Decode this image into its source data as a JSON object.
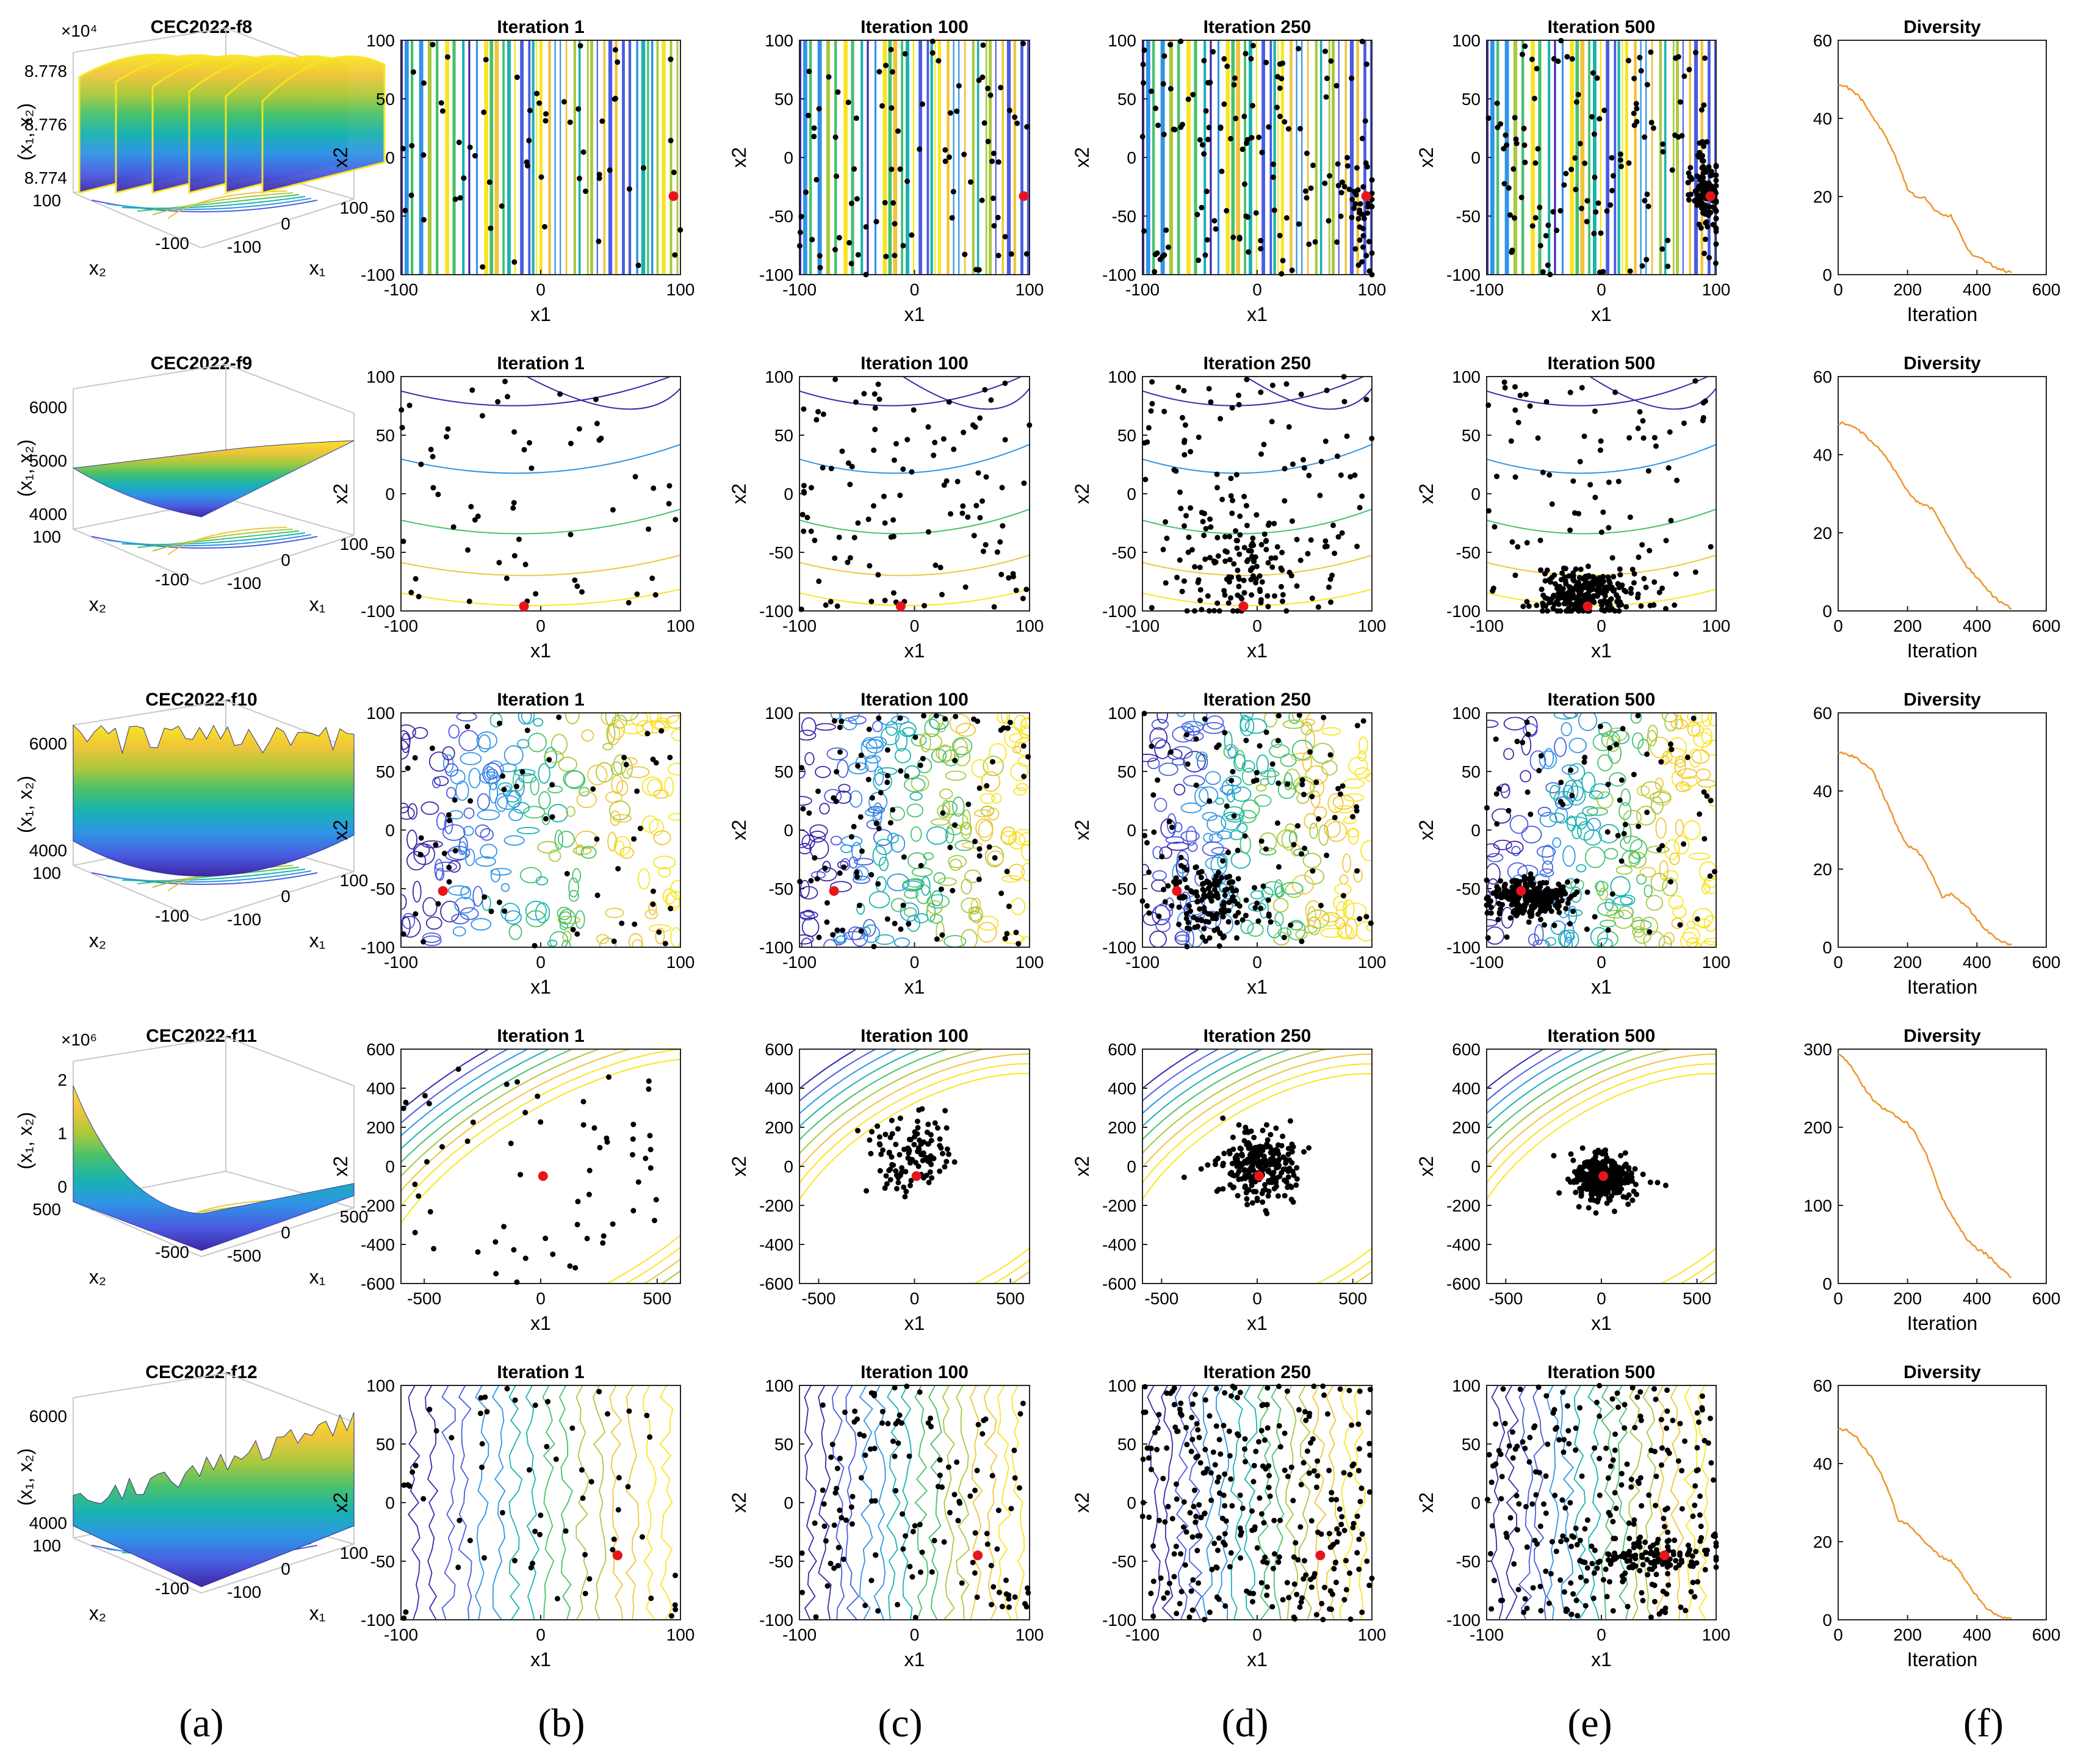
{
  "colors": {
    "particle": "#000000",
    "best": "#e8141b",
    "diversity_line": "#f0932b",
    "palette": [
      "#3e26a8",
      "#4a5ce0",
      "#2f95e6",
      "#19b3b0",
      "#47c16d",
      "#a9c93d",
      "#f0c53a",
      "#f9e520"
    ]
  },
  "column_labels": [
    "(a)",
    "(b)",
    "(c)",
    "(d)",
    "(e)",
    "(f)"
  ],
  "iteration_titles": [
    "Iteration 1",
    "Iteration 100",
    "Iteration 250",
    "Iteration 500"
  ],
  "diversity_title": "Diversity",
  "diversity_xlabel": "Iteration",
  "contour_xlabel": "x1",
  "contour_ylabel": "x2",
  "surface_xlabel": "x₁",
  "surface_ylabel": "x₂",
  "surface_zlabel": "(x₁, x₂)",
  "chart_data": [
    {
      "type": "surface3d",
      "title": "CEC2022-f8",
      "pattern": "stripes",
      "z_exponent": "×10⁴",
      "z_ticks": [
        "8.778",
        "8.776",
        "8.774"
      ],
      "x1_ticks": [
        "-100",
        "0",
        "100"
      ],
      "x2_ticks": [
        "100",
        "-100"
      ],
      "contour_style": "stripes",
      "xlim": [
        -100,
        100
      ],
      "ylim": [
        -100,
        100
      ],
      "xticks": [
        -100,
        0,
        100
      ],
      "yticks": [
        -100,
        -50,
        0,
        50,
        100
      ],
      "best": {
        "x": 95,
        "y": -33
      },
      "clusters": [
        {
          "n": 60,
          "mode": "uniform",
          "sx": 200,
          "sy": 200
        },
        {
          "n": 90,
          "mode": "uniform",
          "sx": 200,
          "sy": 200
        },
        {
          "n": 130,
          "mode": "uniform",
          "sx": 200,
          "sy": 200,
          "extra": {
            "n": 40,
            "cx": 92,
            "cy": -35,
            "sx": 8,
            "sy": 25
          }
        },
        {
          "n": 130,
          "mode": "uniform",
          "sx": 200,
          "sy": 200,
          "extra": {
            "n": 110,
            "cx": 92,
            "cy": -35,
            "sx": 8,
            "sy": 18
          }
        }
      ],
      "diversity": {
        "xlim": [
          0,
          600
        ],
        "ylim": [
          0,
          60
        ],
        "xticks": [
          0,
          200,
          400,
          600
        ],
        "yticks": [
          0,
          20,
          40,
          60
        ],
        "x": [
          0,
          25,
          50,
          75,
          100,
          125,
          150,
          175,
          200,
          225,
          250,
          275,
          300,
          325,
          350,
          375,
          400,
          425,
          450,
          475,
          500
        ],
        "y": [
          49,
          48,
          46.5,
          44,
          40,
          37,
          33,
          28,
          22,
          20,
          19.5,
          17,
          15.5,
          15,
          11,
          6,
          4.5,
          3.5,
          2,
          1.2,
          0.5
        ]
      }
    },
    {
      "type": "surface3d",
      "title": "CEC2022-f9",
      "pattern": "smooth",
      "z_exponent": "",
      "z_ticks": [
        "6000",
        "5000",
        "4000"
      ],
      "x1_ticks": [
        "-100",
        "0",
        "100"
      ],
      "x2_ticks": [
        "100",
        "-100"
      ],
      "contour_style": "arcs",
      "xlim": [
        -100,
        100
      ],
      "ylim": [
        -100,
        100
      ],
      "xticks": [
        -100,
        0,
        100
      ],
      "yticks": [
        -100,
        -50,
        0,
        50,
        100
      ],
      "best": {
        "x": -12,
        "y": -96
      },
      "clusters": [
        {
          "n": 60,
          "mode": "uniform",
          "sx": 200,
          "sy": 200
        },
        {
          "n": 110,
          "mode": "uniform",
          "sx": 200,
          "sy": 200
        },
        {
          "n": 120,
          "mode": "uniform",
          "sx": 200,
          "sy": 200,
          "extra": {
            "n": 100,
            "cx": -12,
            "cy": -65,
            "sx": 22,
            "sy": 22
          }
        },
        {
          "n": 90,
          "mode": "uniform",
          "sx": 200,
          "sy": 200,
          "extra": {
            "n": 260,
            "cx": -15,
            "cy": -85,
            "sx": 20,
            "sy": 10
          }
        }
      ],
      "diversity": {
        "xlim": [
          0,
          600
        ],
        "ylim": [
          0,
          60
        ],
        "xticks": [
          0,
          200,
          400,
          600
        ],
        "yticks": [
          0,
          20,
          40,
          60
        ],
        "x": [
          0,
          25,
          50,
          75,
          100,
          125,
          150,
          175,
          200,
          225,
          250,
          275,
          300,
          325,
          350,
          375,
          400,
          425,
          450,
          475,
          500
        ],
        "y": [
          48,
          48,
          47,
          45,
          43,
          41,
          38,
          34,
          31,
          28,
          27,
          26,
          22,
          18,
          14,
          11,
          8.5,
          6,
          3.5,
          1.8,
          0.6
        ]
      }
    },
    {
      "type": "surface3d",
      "title": "CEC2022-f10",
      "pattern": "rugged",
      "z_exponent": "",
      "z_ticks": [
        "6000",
        "4000"
      ],
      "x1_ticks": [
        "-100",
        "0",
        "100"
      ],
      "x2_ticks": [
        "100",
        "-100"
      ],
      "contour_style": "loops",
      "xlim": [
        -100,
        100
      ],
      "ylim": [
        -100,
        100
      ],
      "xticks": [
        -100,
        0,
        100
      ],
      "yticks": [
        -100,
        -50,
        0,
        50,
        100
      ],
      "best": {
        "x": -70,
        "y": -52
      },
      "clusters": [
        {
          "n": 60,
          "mode": "uniform",
          "sx": 200,
          "sy": 200
        },
        {
          "n": 100,
          "mode": "uniform",
          "sx": 200,
          "sy": 200
        },
        {
          "n": 90,
          "mode": "uniform",
          "sx": 200,
          "sy": 200,
          "extra": {
            "n": 140,
            "cx": -40,
            "cy": -60,
            "sx": 22,
            "sy": 15
          }
        },
        {
          "n": 70,
          "mode": "uniform",
          "sx": 200,
          "sy": 200,
          "extra": {
            "n": 260,
            "cx": -62,
            "cy": -58,
            "sx": 18,
            "sy": 8
          }
        }
      ],
      "diversity": {
        "xlim": [
          0,
          600
        ],
        "ylim": [
          0,
          60
        ],
        "xticks": [
          0,
          200,
          400,
          600
        ],
        "yticks": [
          0,
          20,
          40,
          60
        ],
        "x": [
          0,
          25,
          50,
          75,
          100,
          125,
          150,
          175,
          200,
          225,
          250,
          275,
          300,
          325,
          350,
          375,
          400,
          425,
          450,
          475,
          500
        ],
        "y": [
          50,
          49.5,
          48.5,
          47,
          45,
          40,
          35,
          30,
          26,
          25,
          22,
          18,
          13,
          13.5,
          12,
          10,
          7,
          4.5,
          2.5,
          1.2,
          0.6
        ]
      }
    },
    {
      "type": "surface3d",
      "title": "CEC2022-f11",
      "pattern": "bowl",
      "z_exponent": "×10⁶",
      "z_ticks": [
        "2",
        "1",
        "0"
      ],
      "x1_ticks": [
        "-500",
        "0",
        "500"
      ],
      "x2_ticks": [
        "500",
        "-500"
      ],
      "contour_style": "ellipses",
      "xlim": [
        -600,
        600
      ],
      "ylim": [
        -600,
        600
      ],
      "xticks": [
        -500,
        0,
        500
      ],
      "yticks": [
        -600,
        -400,
        -200,
        0,
        200,
        400,
        600
      ],
      "best": {
        "x": 10,
        "y": -50
      },
      "clusters": [
        {
          "n": 60,
          "mode": "uniform",
          "sx": 1100,
          "sy": 1100
        },
        {
          "n": 110,
          "mode": "gauss",
          "cx": 0,
          "cy": 50,
          "sx": 220,
          "sy": 220
        },
        {
          "n": 240,
          "mode": "gauss",
          "cx": 0,
          "cy": 0,
          "sx": 230,
          "sy": 210
        },
        {
          "n": 230,
          "mode": "gauss",
          "cx": 0,
          "cy": -60,
          "sx": 170,
          "sy": 140,
          "extra": {
            "n": 140,
            "cx": 10,
            "cy": -60,
            "sx": 70,
            "sy": 45
          }
        }
      ],
      "diversity": {
        "xlim": [
          0,
          600
        ],
        "ylim": [
          0,
          300
        ],
        "xticks": [
          0,
          200,
          400,
          600
        ],
        "yticks": [
          0,
          100,
          200,
          300
        ],
        "x": [
          0,
          25,
          50,
          75,
          100,
          125,
          150,
          175,
          200,
          225,
          250,
          275,
          300,
          325,
          350,
          375,
          400,
          425,
          450,
          475,
          500
        ],
        "y": [
          295,
          285,
          270,
          250,
          235,
          225,
          220,
          212,
          205,
          190,
          170,
          140,
          110,
          90,
          70,
          55,
          45,
          38,
          28,
          18,
          8
        ]
      }
    },
    {
      "type": "surface3d",
      "title": "CEC2022-f12",
      "pattern": "ridged",
      "z_exponent": "",
      "z_ticks": [
        "6000",
        "4000"
      ],
      "x1_ticks": [
        "-100",
        "0",
        "100"
      ],
      "x2_ticks": [
        "100",
        "-100"
      ],
      "contour_style": "wavy",
      "xlim": [
        -100,
        100
      ],
      "ylim": [
        -100,
        100
      ],
      "xticks": [
        -100,
        0,
        100
      ],
      "yticks": [
        -100,
        -50,
        0,
        50,
        100
      ],
      "best": {
        "x": 55,
        "y": -45
      },
      "clusters": [
        {
          "n": 60,
          "mode": "uniform",
          "sx": 200,
          "sy": 200
        },
        {
          "n": 130,
          "mode": "uniform",
          "sx": 200,
          "sy": 200
        },
        {
          "n": 300,
          "mode": "uniform",
          "sx": 200,
          "sy": 200
        },
        {
          "n": 240,
          "mode": "uniform",
          "sx": 200,
          "sy": 200,
          "extra": {
            "n": 110,
            "cx": 45,
            "cy": -45,
            "sx": 30,
            "sy": 8
          }
        }
      ],
      "diversity": {
        "xlim": [
          0,
          600
        ],
        "ylim": [
          0,
          60
        ],
        "xticks": [
          0,
          200,
          400,
          600
        ],
        "yticks": [
          0,
          20,
          40,
          60
        ],
        "x": [
          0,
          25,
          50,
          75,
          100,
          125,
          150,
          175,
          200,
          225,
          250,
          275,
          300,
          325,
          350,
          375,
          400,
          425,
          450,
          475,
          500
        ],
        "y": [
          49,
          48.5,
          47,
          44,
          41,
          37,
          32,
          25,
          25,
          22,
          20,
          17.5,
          16,
          15,
          12.5,
          9,
          6,
          3,
          1.5,
          0.5,
          0.4
        ]
      }
    }
  ]
}
